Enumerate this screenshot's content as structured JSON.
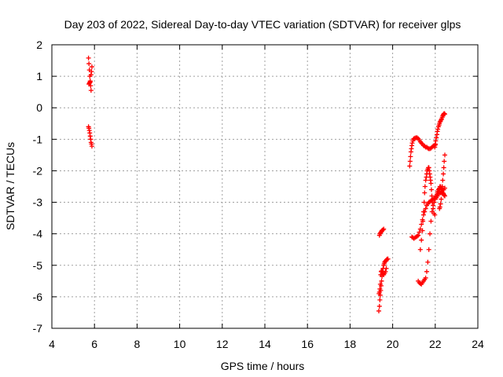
{
  "chart_data": {
    "type": "scatter",
    "title": "Day 203 of 2022, Sidereal Day-to-day VTEC variation (SDTVAR) for receiver glps",
    "xlabel": "GPS time / hours",
    "ylabel": "SDTVAR / TECUs",
    "xlim": [
      4,
      24
    ],
    "ylim": [
      -7,
      2
    ],
    "xticks": [
      "4",
      "6",
      "8",
      "10",
      "12",
      "14",
      "16",
      "18",
      "20",
      "22",
      "24"
    ],
    "yticks": [
      "2",
      "1",
      "0",
      "-1",
      "-2",
      "-3",
      "-4",
      "-5",
      "-6",
      "-7"
    ],
    "grid": true,
    "marker": "plus",
    "series_color": "#ff0000",
    "series": [
      {
        "name": "SDTVAR",
        "x": [
          5.72,
          5.74,
          5.76,
          5.78,
          5.8,
          5.82,
          5.84,
          5.78,
          5.74,
          5.76,
          5.8,
          5.84,
          5.86,
          5.88,
          5.72,
          5.74,
          5.76,
          5.78,
          5.8,
          5.82,
          5.84,
          5.86,
          5.88,
          19.35,
          19.38,
          19.4,
          19.42,
          19.44,
          19.46,
          19.48,
          19.5,
          19.52,
          19.55,
          19.58,
          19.6,
          19.62,
          19.65,
          19.68,
          19.7,
          19.72,
          19.75,
          19.78,
          19.7,
          19.66,
          19.62,
          19.58,
          19.55,
          19.52,
          19.5,
          19.48,
          19.46,
          19.44,
          19.42,
          19.4,
          19.38,
          19.36,
          19.38,
          19.4,
          19.42,
          19.45,
          19.48,
          19.5,
          19.52,
          19.55,
          19.58,
          20.8,
          20.82,
          20.84,
          20.86,
          20.88,
          20.9,
          20.92,
          20.95,
          20.98,
          21.0,
          21.05,
          21.1,
          21.15,
          21.2,
          21.25,
          21.3,
          21.35,
          21.4,
          21.45,
          21.5,
          21.55,
          21.6,
          21.65,
          21.7,
          21.75,
          21.8,
          21.85,
          21.9,
          21.95,
          22.0,
          21.2,
          21.25,
          21.3,
          21.35,
          21.4,
          21.45,
          21.5,
          21.55,
          21.6,
          21.65,
          21.7,
          21.75,
          21.8,
          21.85,
          21.9,
          21.95,
          22.0,
          22.05,
          22.1,
          22.15,
          22.2,
          22.25,
          22.3,
          22.35,
          22.4,
          22.45,
          20.9,
          20.95,
          21.0,
          21.05,
          21.1,
          21.15,
          21.2,
          21.25,
          21.3,
          21.35,
          21.4,
          21.45,
          21.5,
          21.55,
          21.6,
          21.65,
          21.7,
          21.75,
          21.8,
          21.85,
          21.9,
          21.95,
          22.0,
          22.05,
          21.3,
          21.35,
          21.4,
          21.42,
          21.45,
          21.48,
          21.5,
          21.52,
          21.55,
          21.58,
          21.6,
          21.62,
          21.65,
          21.68,
          21.7,
          21.72,
          21.74,
          21.76,
          21.78,
          21.8,
          21.82,
          21.84,
          21.86,
          21.9,
          21.94,
          21.98,
          22.0,
          22.02,
          22.05,
          22.08,
          22.1,
          22.12,
          22.15,
          22.18,
          22.2,
          22.22,
          22.25,
          22.28,
          22.3,
          22.32,
          22.35,
          22.38,
          22.4,
          22.42,
          22.45,
          22.45,
          22.42,
          22.4,
          22.38,
          22.35,
          22.33,
          22.3,
          22.28,
          22.25,
          22.22,
          22.2,
          21.98,
          22.0,
          22.02,
          22.05,
          22.08,
          22.1,
          22.12,
          22.15,
          22.18,
          22.2,
          22.22,
          22.25,
          22.28,
          22.3,
          22.33,
          22.35,
          22.38,
          22.4,
          22.42,
          22.45
        ],
        "y": [
          1.58,
          1.4,
          1.2,
          1.0,
          0.85,
          0.7,
          0.55,
          0.8,
          0.75,
          0.78,
          0.82,
          1.05,
          1.15,
          1.3,
          -0.6,
          -0.65,
          -0.72,
          -0.8,
          -0.9,
          -1.0,
          -1.1,
          -1.15,
          -1.22,
          -6.45,
          -6.3,
          -6.1,
          -5.95,
          -5.8,
          -5.65,
          -5.5,
          -5.35,
          -5.2,
          -5.1,
          -5.0,
          -4.95,
          -4.9,
          -4.88,
          -4.85,
          -4.85,
          -4.82,
          -4.8,
          -4.8,
          -5.1,
          -5.2,
          -5.25,
          -5.3,
          -5.28,
          -5.25,
          -5.2,
          -5.18,
          -5.2,
          -5.3,
          -5.6,
          -5.75,
          -5.85,
          -5.9,
          -4.05,
          -4.0,
          -3.98,
          -3.95,
          -3.92,
          -3.9,
          -3.88,
          -3.88,
          -3.85,
          -1.85,
          -1.7,
          -1.55,
          -1.4,
          -1.3,
          -1.2,
          -1.12,
          -1.05,
          -1.0,
          -0.98,
          -0.96,
          -0.95,
          -0.95,
          -0.98,
          -1.02,
          -1.08,
          -1.12,
          -1.15,
          -1.2,
          -1.22,
          -1.25,
          -1.25,
          -1.28,
          -1.3,
          -1.3,
          -1.28,
          -1.25,
          -1.22,
          -1.2,
          -1.18,
          -5.5,
          -5.55,
          -5.58,
          -5.6,
          -5.55,
          -5.5,
          -5.45,
          -5.4,
          -5.2,
          -4.9,
          -4.5,
          -4.0,
          -3.6,
          -3.3,
          -3.1,
          -3.0,
          -2.9,
          -2.8,
          -2.8,
          -2.75,
          -2.7,
          -2.7,
          -2.65,
          -2.6,
          -2.6,
          -2.55,
          -4.1,
          -4.12,
          -4.15,
          -4.12,
          -4.1,
          -4.08,
          -4.05,
          -3.95,
          -3.85,
          -3.7,
          -3.55,
          -3.4,
          -3.3,
          -3.2,
          -3.1,
          -3.05,
          -3.0,
          -2.98,
          -2.95,
          -2.92,
          -2.9,
          -2.88,
          -2.85,
          -2.85,
          -4.5,
          -4.2,
          -3.9,
          -3.6,
          -3.3,
          -3.0,
          -2.7,
          -2.5,
          -2.3,
          -2.2,
          -2.1,
          -2.0,
          -1.95,
          -1.9,
          -1.9,
          -2.0,
          -2.1,
          -2.2,
          -2.3,
          -2.4,
          -2.6,
          -2.8,
          -3.0,
          -3.2,
          -3.35,
          -3.4,
          -2.9,
          -2.85,
          -2.8,
          -2.75,
          -2.7,
          -2.65,
          -2.6,
          -2.58,
          -2.55,
          -2.5,
          -2.5,
          -2.55,
          -2.6,
          -2.65,
          -2.7,
          -2.72,
          -2.75,
          -2.78,
          -2.8,
          -1.5,
          -1.7,
          -1.9,
          -2.1,
          -2.3,
          -2.5,
          -2.7,
          -2.9,
          -3.05,
          -3.15,
          -3.2,
          -1.25,
          -1.15,
          -1.05,
          -0.95,
          -0.85,
          -0.75,
          -0.68,
          -0.6,
          -0.55,
          -0.5,
          -0.45,
          -0.42,
          -0.38,
          -0.35,
          -0.3,
          -0.25,
          -0.22,
          -0.2,
          -0.18,
          -0.2
        ]
      }
    ]
  }
}
